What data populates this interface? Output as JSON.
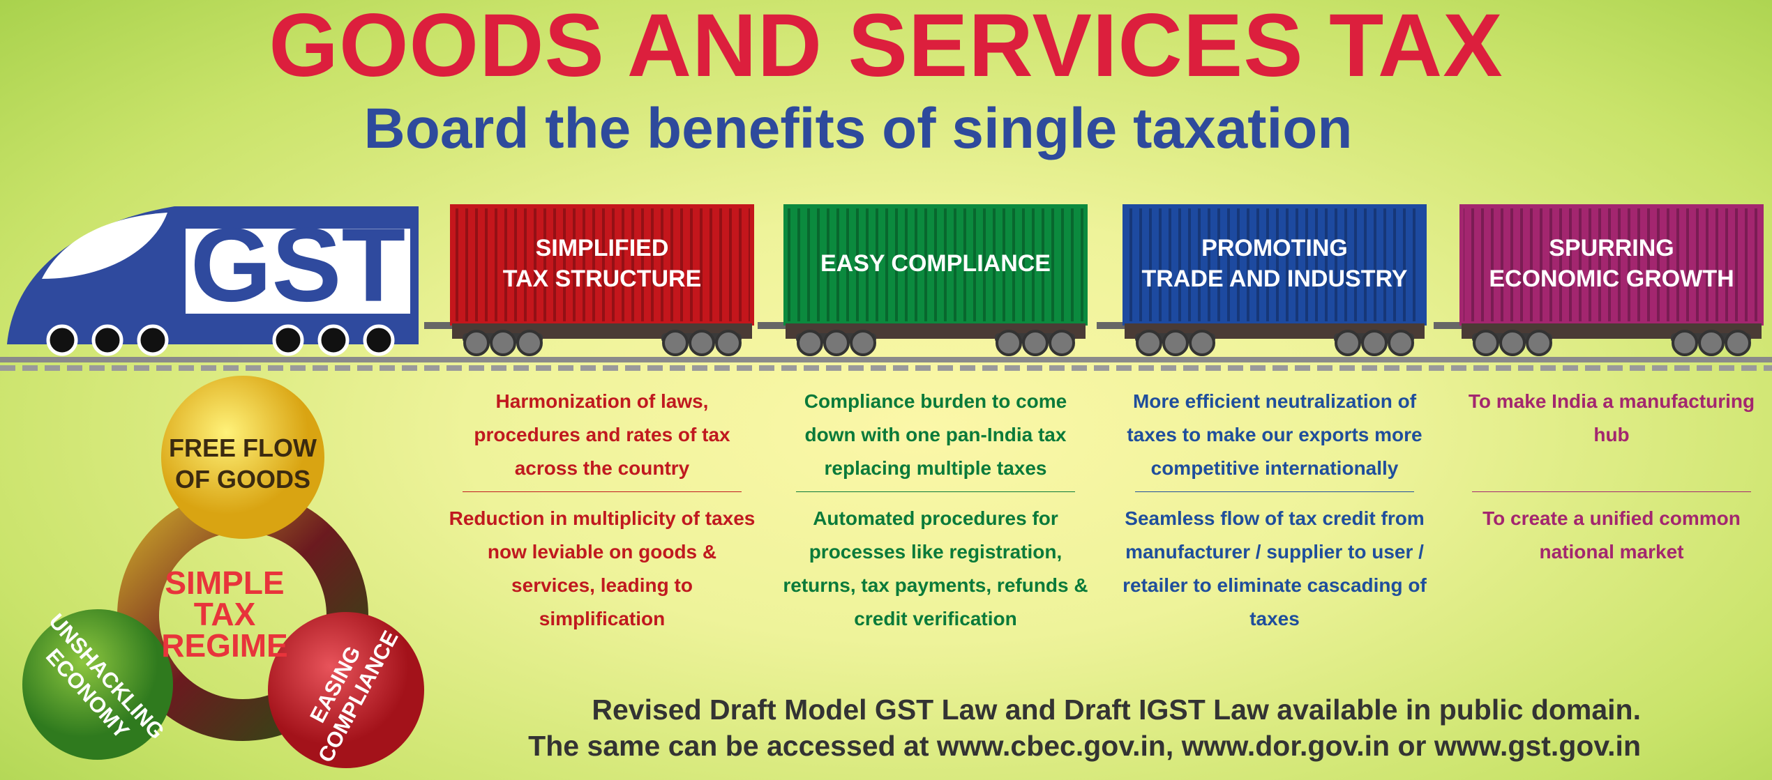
{
  "title": "GOODS AND SERVICES TAX",
  "subtitle": "Board the benefits of single taxation",
  "engine": {
    "label": "GST"
  },
  "wagons": [
    {
      "title": [
        "SIMPLIFIED",
        "TAX STRUCTURE"
      ],
      "color": "#c4161c",
      "text_color": "#c0191f",
      "points": [
        "Harmonization of laws, procedures and rates of tax across the country",
        "Reduction in multiplicity of taxes now leviable on goods & services, leading to simplification"
      ]
    },
    {
      "title": [
        "EASY COMPLIANCE"
      ],
      "color": "#0b8a3e",
      "text_color": "#0a7a3a",
      "points": [
        "Compliance burden to come down with one pan-India tax replacing multiple taxes",
        "Automated procedures for processes like registration, returns, tax payments, refunds & credit verification"
      ]
    },
    {
      "title": [
        "PROMOTING",
        "TRADE AND INDUSTRY"
      ],
      "color": "#1d4aa0",
      "text_color": "#1f4e9c",
      "points": [
        "More efficient neutralization of taxes to make our exports more competitive internationally",
        "Seamless flow of tax credit from manufacturer / supplier to user / retailer to eliminate cascading of taxes"
      ]
    },
    {
      "title": [
        "SPURRING",
        "ECONOMIC GROWTH"
      ],
      "color": "#a3266f",
      "text_color": "#a3266f",
      "points": [
        "To make India a manufacturing hub",
        "To create a unified common national market"
      ]
    }
  ],
  "regime": {
    "center": [
      "SIMPLE",
      "TAX",
      "REGIME"
    ],
    "goods": [
      "FREE FLOW",
      "OF GOODS"
    ],
    "economy": [
      "UNSHACKLING",
      "ECONOMY"
    ],
    "compliance": [
      "EASING",
      "COMPLIANCE"
    ]
  },
  "footer": [
    "Revised Draft Model GST Law and Draft IGST Law available in public domain.",
    "The same can be accessed at www.cbec.gov.in, www.dor.gov.in or www.gst.gov.in"
  ]
}
